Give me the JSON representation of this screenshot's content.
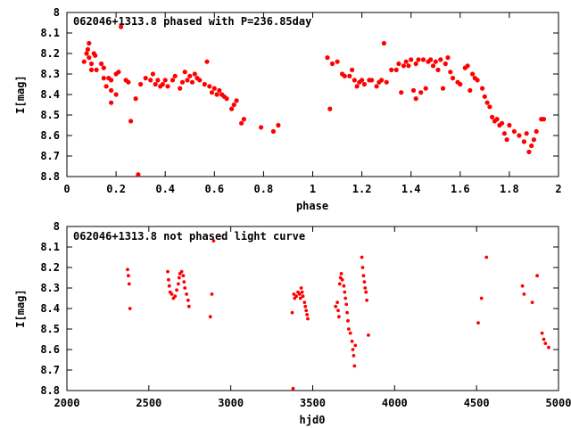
{
  "chart_data": [
    {
      "type": "scatter",
      "title": "062046+1313.8 phased with P=236.85day",
      "xlabel": "phase",
      "ylabel": "I[mag]",
      "xlim": [
        0,
        2
      ],
      "ylim": [
        8.8,
        8
      ],
      "y_inverted": true,
      "grid": false,
      "marker_color": "#ff0000",
      "x_ticks": [
        "0",
        "0.2",
        "0.4",
        "0.6",
        "0.8",
        "1",
        "1.2",
        "1.4",
        "1.6",
        "1.8",
        "2"
      ],
      "y_ticks": [
        "8",
        "8.1",
        "8.2",
        "8.3",
        "8.4",
        "8.5",
        "8.6",
        "8.7",
        "8.8"
      ],
      "series": [
        {
          "points": [
            [
              0.07,
              8.24
            ],
            [
              0.08,
              8.2
            ],
            [
              0.085,
              8.18
            ],
            [
              0.09,
              8.15
            ],
            [
              0.09,
              8.22
            ],
            [
              0.1,
              8.25
            ],
            [
              0.1,
              8.28
            ],
            [
              0.11,
              8.2
            ],
            [
              0.115,
              8.21
            ],
            [
              0.12,
              8.28
            ],
            [
              0.14,
              8.25
            ],
            [
              0.15,
              8.27
            ],
            [
              0.15,
              8.32
            ],
            [
              0.16,
              8.36
            ],
            [
              0.17,
              8.32
            ],
            [
              0.18,
              8.33
            ],
            [
              0.18,
              8.38
            ],
            [
              0.18,
              8.44
            ],
            [
              0.2,
              8.4
            ],
            [
              0.2,
              8.3
            ],
            [
              0.21,
              8.29
            ],
            [
              0.22,
              8.07
            ],
            [
              0.24,
              8.33
            ],
            [
              0.25,
              8.34
            ],
            [
              0.26,
              8.53
            ],
            [
              0.28,
              8.42
            ],
            [
              0.29,
              8.79
            ],
            [
              0.3,
              8.35
            ],
            [
              0.32,
              8.32
            ],
            [
              0.34,
              8.33
            ],
            [
              0.35,
              8.3
            ],
            [
              0.36,
              8.35
            ],
            [
              0.37,
              8.33
            ],
            [
              0.38,
              8.36
            ],
            [
              0.39,
              8.35
            ],
            [
              0.4,
              8.33
            ],
            [
              0.41,
              8.36
            ],
            [
              0.43,
              8.33
            ],
            [
              0.44,
              8.31
            ],
            [
              0.46,
              8.37
            ],
            [
              0.47,
              8.34
            ],
            [
              0.48,
              8.29
            ],
            [
              0.49,
              8.33
            ],
            [
              0.5,
              8.31
            ],
            [
              0.51,
              8.34
            ],
            [
              0.52,
              8.3
            ],
            [
              0.53,
              8.32
            ],
            [
              0.54,
              8.33
            ],
            [
              0.56,
              8.35
            ],
            [
              0.57,
              8.24
            ],
            [
              0.58,
              8.36
            ],
            [
              0.59,
              8.39
            ],
            [
              0.6,
              8.37
            ],
            [
              0.61,
              8.4
            ],
            [
              0.62,
              8.38
            ],
            [
              0.63,
              8.4
            ],
            [
              0.64,
              8.41
            ],
            [
              0.65,
              8.42
            ],
            [
              0.67,
              8.47
            ],
            [
              0.68,
              8.45
            ],
            [
              0.69,
              8.43
            ],
            [
              0.71,
              8.54
            ],
            [
              0.72,
              8.52
            ],
            [
              0.79,
              8.56
            ],
            [
              0.84,
              8.58
            ],
            [
              0.86,
              8.55
            ],
            [
              1.06,
              8.22
            ],
            [
              1.07,
              8.47
            ],
            [
              1.08,
              8.25
            ],
            [
              1.1,
              8.24
            ],
            [
              1.12,
              8.3
            ],
            [
              1.13,
              8.31
            ],
            [
              1.15,
              8.31
            ],
            [
              1.16,
              8.28
            ],
            [
              1.17,
              8.33
            ],
            [
              1.18,
              8.36
            ],
            [
              1.19,
              8.34
            ],
            [
              1.2,
              8.33
            ],
            [
              1.21,
              8.35
            ],
            [
              1.23,
              8.33
            ],
            [
              1.24,
              8.33
            ],
            [
              1.26,
              8.36
            ],
            [
              1.27,
              8.34
            ],
            [
              1.28,
              8.33
            ],
            [
              1.29,
              8.15
            ],
            [
              1.3,
              8.34
            ],
            [
              1.32,
              8.28
            ],
            [
              1.34,
              8.28
            ],
            [
              1.35,
              8.25
            ],
            [
              1.36,
              8.39
            ],
            [
              1.37,
              8.26
            ],
            [
              1.38,
              8.24
            ],
            [
              1.39,
              8.26
            ],
            [
              1.4,
              8.23
            ],
            [
              1.41,
              8.38
            ],
            [
              1.42,
              8.42
            ],
            [
              1.42,
              8.25
            ],
            [
              1.43,
              8.23
            ],
            [
              1.44,
              8.39
            ],
            [
              1.45,
              8.23
            ],
            [
              1.46,
              8.37
            ],
            [
              1.47,
              8.24
            ],
            [
              1.48,
              8.23
            ],
            [
              1.49,
              8.26
            ],
            [
              1.5,
              8.24
            ],
            [
              1.51,
              8.28
            ],
            [
              1.52,
              8.23
            ],
            [
              1.53,
              8.37
            ],
            [
              1.54,
              8.25
            ],
            [
              1.55,
              8.22
            ],
            [
              1.56,
              8.29
            ],
            [
              1.57,
              8.32
            ],
            [
              1.59,
              8.34
            ],
            [
              1.6,
              8.35
            ],
            [
              1.62,
              8.27
            ],
            [
              1.63,
              8.26
            ],
            [
              1.64,
              8.38
            ],
            [
              1.65,
              8.3
            ],
            [
              1.66,
              8.32
            ],
            [
              1.67,
              8.33
            ],
            [
              1.69,
              8.37
            ],
            [
              1.7,
              8.41
            ],
            [
              1.71,
              8.44
            ],
            [
              1.72,
              8.46
            ],
            [
              1.73,
              8.51
            ],
            [
              1.74,
              8.53
            ],
            [
              1.75,
              8.52
            ],
            [
              1.76,
              8.55
            ],
            [
              1.77,
              8.54
            ],
            [
              1.78,
              8.59
            ],
            [
              1.79,
              8.62
            ],
            [
              1.8,
              8.55
            ],
            [
              1.82,
              8.58
            ],
            [
              1.84,
              8.6
            ],
            [
              1.86,
              8.63
            ],
            [
              1.87,
              8.59
            ],
            [
              1.88,
              8.68
            ],
            [
              1.89,
              8.65
            ],
            [
              1.9,
              8.62
            ],
            [
              1.91,
              8.58
            ],
            [
              1.93,
              8.52
            ],
            [
              1.94,
              8.52
            ]
          ]
        }
      ]
    },
    {
      "type": "scatter",
      "title": "062046+1313.8 not phased light curve",
      "xlabel": "hjd0",
      "ylabel": "I[mag]",
      "xlim": [
        2000,
        5000
      ],
      "ylim": [
        8.8,
        8
      ],
      "y_inverted": true,
      "grid": false,
      "marker_color": "#ff0000",
      "x_ticks": [
        "2000",
        "2500",
        "3000",
        "3500",
        "4000",
        "4500",
        "5000"
      ],
      "y_ticks": [
        "8",
        "8.1",
        "8.2",
        "8.3",
        "8.4",
        "8.5",
        "8.6",
        "8.7",
        "8.8"
      ],
      "series": [
        {
          "points": [
            [
              2370,
              8.21
            ],
            [
              2375,
              8.24
            ],
            [
              2380,
              8.28
            ],
            [
              2385,
              8.4
            ],
            [
              2615,
              8.22
            ],
            [
              2620,
              8.26
            ],
            [
              2625,
              8.29
            ],
            [
              2630,
              8.32
            ],
            [
              2640,
              8.33
            ],
            [
              2650,
              8.35
            ],
            [
              2660,
              8.34
            ],
            [
              2670,
              8.31
            ],
            [
              2680,
              8.28
            ],
            [
              2685,
              8.25
            ],
            [
              2690,
              8.23
            ],
            [
              2700,
              8.22
            ],
            [
              2710,
              8.24
            ],
            [
              2715,
              8.27
            ],
            [
              2720,
              8.3
            ],
            [
              2730,
              8.33
            ],
            [
              2740,
              8.36
            ],
            [
              2745,
              8.39
            ],
            [
              2875,
              8.44
            ],
            [
              2885,
              8.33
            ],
            [
              2895,
              8.07
            ],
            [
              3375,
              8.42
            ],
            [
              3380,
              8.79
            ],
            [
              3385,
              8.33
            ],
            [
              3390,
              8.35
            ],
            [
              3400,
              8.34
            ],
            [
              3410,
              8.32
            ],
            [
              3420,
              8.33
            ],
            [
              3425,
              8.35
            ],
            [
              3430,
              8.3
            ],
            [
              3435,
              8.32
            ],
            [
              3440,
              8.34
            ],
            [
              3450,
              8.37
            ],
            [
              3455,
              8.39
            ],
            [
              3460,
              8.41
            ],
            [
              3465,
              8.43
            ],
            [
              3470,
              8.45
            ],
            [
              3640,
              8.39
            ],
            [
              3650,
              8.37
            ],
            [
              3655,
              8.41
            ],
            [
              3660,
              8.44
            ],
            [
              3665,
              8.28
            ],
            [
              3670,
              8.25
            ],
            [
              3675,
              8.23
            ],
            [
              3680,
              8.26
            ],
            [
              3690,
              8.29
            ],
            [
              3695,
              8.32
            ],
            [
              3700,
              8.35
            ],
            [
              3705,
              8.38
            ],
            [
              3710,
              8.42
            ],
            [
              3715,
              8.46
            ],
            [
              3720,
              8.5
            ],
            [
              3730,
              8.52
            ],
            [
              3740,
              8.56
            ],
            [
              3745,
              8.6
            ],
            [
              3750,
              8.63
            ],
            [
              3755,
              8.68
            ],
            [
              3760,
              8.58
            ],
            [
              3800,
              8.15
            ],
            [
              3805,
              8.2
            ],
            [
              3810,
              8.24
            ],
            [
              3815,
              8.27
            ],
            [
              3820,
              8.3
            ],
            [
              3825,
              8.32
            ],
            [
              3830,
              8.36
            ],
            [
              3840,
              8.53
            ],
            [
              4510,
              8.47
            ],
            [
              4530,
              8.35
            ],
            [
              4560,
              8.15
            ],
            [
              4780,
              8.29
            ],
            [
              4790,
              8.33
            ],
            [
              4840,
              8.37
            ],
            [
              4870,
              8.24
            ],
            [
              4900,
              8.52
            ],
            [
              4910,
              8.55
            ],
            [
              4920,
              8.57
            ],
            [
              4940,
              8.59
            ]
          ]
        }
      ]
    }
  ]
}
